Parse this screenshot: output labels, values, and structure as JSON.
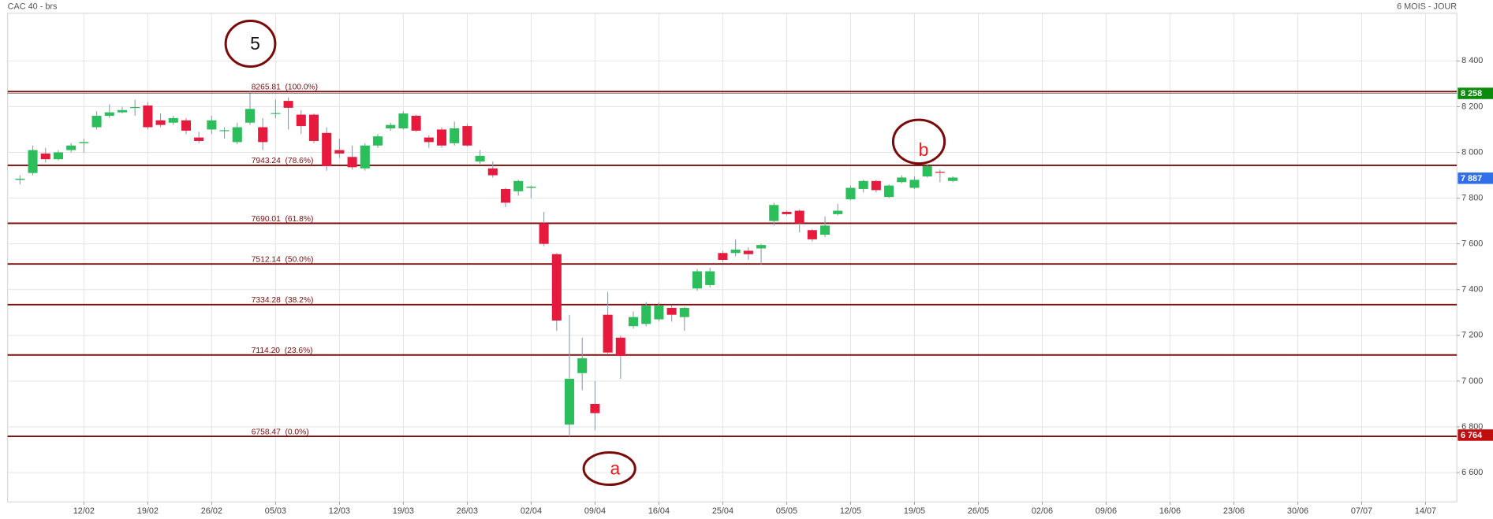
{
  "chart_data": {
    "type": "candlestick",
    "title": "CAC 40 - brs",
    "subtitle": "6 MOIS - JOUR",
    "categories": [
      null,
      null,
      null,
      null,
      null,
      "12/02",
      null,
      null,
      null,
      null,
      "19/02",
      null,
      null,
      null,
      null,
      "26/02",
      null,
      null,
      null,
      null,
      "05/03",
      null,
      null,
      null,
      null,
      "12/03",
      null,
      null,
      null,
      null,
      "19/03",
      null,
      null,
      null,
      null,
      "26/03",
      null,
      null,
      null,
      null,
      "02/04",
      null,
      null,
      null,
      null,
      "09/04",
      null,
      null,
      null,
      null,
      "16/04",
      null,
      null,
      null,
      null,
      "25/04",
      null,
      null,
      null,
      null,
      "05/05",
      null,
      null,
      null,
      null,
      "12/05",
      null,
      null,
      null,
      null,
      "19/05",
      null,
      null,
      null,
      null,
      "26/05",
      null,
      null,
      null,
      null,
      "02/06",
      null,
      null,
      null,
      null,
      "09/06",
      null,
      null,
      null,
      null,
      "16/06",
      null,
      null,
      null,
      null,
      "23/06",
      null,
      null,
      null,
      null,
      "30/06",
      null,
      null,
      null,
      null,
      "07/07",
      null,
      null,
      null,
      null,
      "14/07",
      null
    ],
    "open": [
      7880,
      7910,
      7995,
      7970,
      8010,
      8040,
      8110,
      8160,
      8175,
      8195,
      8205,
      8140,
      8130,
      8140,
      8065,
      8100,
      8095,
      8045,
      8130,
      8110,
      8170,
      8225,
      8165,
      8165,
      8085,
      8010,
      7980,
      7930,
      8030,
      8105,
      8105,
      8160,
      8065,
      8100,
      8040,
      8115,
      7960,
      7930,
      7840,
      7830,
      7845,
      7690,
      7555,
      6810,
      7035,
      6900,
      7290,
      7190,
      7240,
      7250,
      7270,
      7320,
      7280,
      7405,
      7420,
      7560,
      7560,
      7570,
      7580,
      7700,
      7740,
      7745,
      7660,
      7640,
      7730,
      7795,
      7840,
      7875,
      7805,
      7870,
      7845,
      7895,
      7915,
      7875,
      null,
      null,
      null,
      null,
      null,
      null,
      null,
      null,
      null,
      null,
      null,
      null,
      null,
      null,
      null,
      null,
      null,
      null,
      null,
      null,
      null,
      null,
      null,
      null,
      null,
      null,
      null,
      null,
      null,
      null,
      null,
      null,
      null,
      null,
      null,
      null,
      null,
      null
    ],
    "high": [
      7900,
      8030,
      8020,
      8010,
      8040,
      8060,
      8180,
      8210,
      8200,
      8230,
      8220,
      8170,
      8160,
      8150,
      8090,
      8160,
      8110,
      8130,
      8266,
      8150,
      8230,
      8240,
      8185,
      8170,
      8110,
      8060,
      8030,
      8040,
      8080,
      8130,
      8180,
      8165,
      8075,
      8110,
      8135,
      8125,
      8010,
      7960,
      7845,
      7880,
      7855,
      7740,
      7560,
      7290,
      7190,
      7000,
      7390,
      7200,
      7305,
      7345,
      7345,
      7330,
      7325,
      7490,
      7495,
      7570,
      7620,
      7585,
      7600,
      7780,
      7745,
      7750,
      7665,
      7720,
      7775,
      7855,
      7880,
      7880,
      7860,
      7900,
      7895,
      7945,
      7925,
      7895,
      null,
      null,
      null,
      null,
      null,
      null,
      null,
      null,
      null,
      null,
      null,
      null,
      null,
      null,
      null,
      null,
      null,
      null,
      null,
      null,
      null,
      null,
      null,
      null,
      null,
      null,
      null,
      null,
      null,
      null,
      null,
      null,
      null,
      null,
      null,
      null,
      null,
      null
    ],
    "low": [
      7860,
      7900,
      7955,
      7965,
      8000,
      8000,
      8100,
      8150,
      8170,
      8160,
      8100,
      8110,
      8120,
      8080,
      8040,
      8080,
      8060,
      8035,
      8120,
      8010,
      8150,
      8100,
      8080,
      8040,
      7920,
      7975,
      7925,
      7920,
      8020,
      8095,
      8100,
      8090,
      8020,
      8020,
      8030,
      8025,
      7950,
      7890,
      7760,
      7810,
      7800,
      7590,
      7220,
      6758,
      6960,
      6785,
      7120,
      7010,
      7230,
      7240,
      7260,
      7260,
      7220,
      7395,
      7410,
      7520,
      7545,
      7530,
      7510,
      7680,
      7725,
      7650,
      7610,
      7630,
      7725,
      7790,
      7825,
      7825,
      7800,
      7865,
      7840,
      7890,
      7870,
      7870,
      null,
      null,
      null,
      null,
      null,
      null,
      null,
      null,
      null,
      null,
      null,
      null,
      null,
      null,
      null,
      null,
      null,
      null,
      null,
      null,
      null,
      null,
      null,
      null,
      null,
      null,
      null,
      null,
      null,
      null,
      null,
      null,
      null,
      null,
      null,
      null,
      null,
      null
    ],
    "close": [
      7885,
      8010,
      7970,
      8000,
      8030,
      8045,
      8160,
      8175,
      8185,
      8198,
      8110,
      8120,
      8150,
      8095,
      8050,
      8140,
      8097,
      8110,
      8190,
      8045,
      8172,
      8195,
      8115,
      8050,
      7940,
      7995,
      7935,
      8030,
      8070,
      8120,
      8170,
      8095,
      8045,
      8030,
      8105,
      8030,
      7985,
      7900,
      7780,
      7875,
      7850,
      7600,
      7265,
      7010,
      7100,
      6860,
      7125,
      7110,
      7280,
      7330,
      7330,
      7290,
      7320,
      7480,
      7480,
      7530,
      7575,
      7555,
      7595,
      7770,
      7730,
      7690,
      7620,
      7680,
      7745,
      7845,
      7875,
      7835,
      7855,
      7890,
      7880,
      7940,
      7913,
      7890,
      null,
      null,
      null,
      null,
      null,
      null,
      null,
      null,
      null,
      null,
      null,
      null,
      null,
      null,
      null,
      null,
      null,
      null,
      null,
      null,
      null,
      null,
      null,
      null,
      null,
      null,
      null,
      null,
      null,
      null,
      null,
      null,
      null,
      null,
      null,
      null,
      null,
      null
    ],
    "up_color": "#2dbe5c",
    "down_color": "#e61a3c",
    "ylim": [
      6472,
      8608
    ],
    "yticks": [
      {
        "value": 6600,
        "label": "6 600"
      },
      {
        "value": 6800,
        "label": "6 800"
      },
      {
        "value": 7000,
        "label": "7 000"
      },
      {
        "value": 7200,
        "label": "7 200"
      },
      {
        "value": 7400,
        "label": "7 400"
      },
      {
        "value": 7600,
        "label": "7 600"
      },
      {
        "value": 7800,
        "label": "7 800"
      },
      {
        "value": 8000,
        "label": "8 000"
      },
      {
        "value": 8200,
        "label": "8 200"
      },
      {
        "value": 8400,
        "label": "8 400"
      }
    ],
    "grid": true,
    "fib_levels": [
      {
        "value": 8265.81,
        "label": "8265.81  (100.0%)"
      },
      {
        "value": 7943.24,
        "label": "7943.24  (78.6%)"
      },
      {
        "value": 7690.01,
        "label": "7690.01  (61.8%)"
      },
      {
        "value": 7512.14,
        "label": "7512.14  (50.0%)"
      },
      {
        "value": 7334.28,
        "label": "7334.28  (38.2%)"
      },
      {
        "value": 7114.2,
        "label": "7114.20  (23.6%)"
      },
      {
        "value": 6758.47,
        "label": "6758.47  (0.0%)"
      }
    ],
    "fib_color": "#7a0b0b",
    "price_tags": [
      {
        "value": 8258,
        "label": "8 258",
        "color": "#0b8a0b"
      },
      {
        "value": 7887,
        "label": "7 887",
        "color": "#2f6fe8"
      },
      {
        "value": 6764,
        "label": "6 764",
        "color": "#c00d0d"
      }
    ],
    "annotations": [
      "5",
      "b",
      "a"
    ]
  }
}
